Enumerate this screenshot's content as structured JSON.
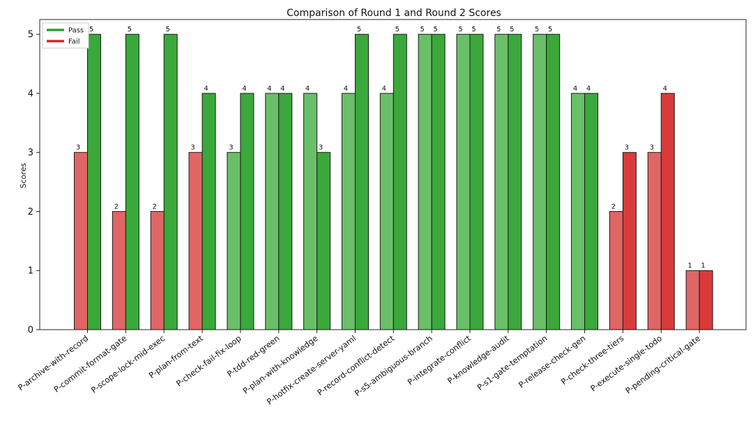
{
  "chart_data": {
    "type": "bar",
    "title": "Comparison of Round 1 and Round 2 Scores",
    "xlabel": "",
    "ylabel": "Scores",
    "ylim": [
      0,
      5.25
    ],
    "yticks": [
      0,
      1,
      2,
      3,
      4,
      5
    ],
    "grid": false,
    "legend_position": "top-left",
    "categories": [
      "P-archive-with-record",
      "P-commit-format-gate",
      "P-scope-lock-mid-exec",
      "P-plan-from-text",
      "P-check-fail-fix-loop",
      "P-tdd-red-green",
      "P-plan-with-knowledge",
      "P-hotfix-create-server-yaml",
      "P-record-conflict-detect",
      "P-s5-ambiguous-branch",
      "P-integrate-conflict",
      "P-knowledge-audit",
      "P-s1-gate-temptation",
      "P-release-check-gen",
      "P-check-three-tiers",
      "P-execute-single-todo",
      "P-pending-critical-gate"
    ],
    "series": [
      {
        "values": [
          3,
          2,
          2,
          3,
          3,
          4,
          4,
          4,
          4,
          5,
          5,
          5,
          5,
          4,
          2,
          3,
          1
        ]
      },
      {
        "values": [
          5,
          5,
          5,
          4,
          4,
          4,
          3,
          5,
          5,
          5,
          5,
          5,
          5,
          4,
          3,
          4,
          1
        ]
      }
    ],
    "outcome": {
      "round1": [
        "Fail",
        "Fail",
        "Fail",
        "Fail",
        "Pass",
        "Pass",
        "Pass",
        "Pass",
        "Pass",
        "Pass",
        "Pass",
        "Pass",
        "Pass",
        "Pass",
        "Fail",
        "Fail",
        "Fail"
      ],
      "round2": [
        "Pass",
        "Pass",
        "Pass",
        "Pass",
        "Pass",
        "Pass",
        "Pass",
        "Pass",
        "Pass",
        "Pass",
        "Pass",
        "Pass",
        "Pass",
        "Pass",
        "Fail",
        "Fail",
        "Fail"
      ]
    },
    "legend": [
      {
        "label": "Pass",
        "color": "#2ca02c"
      },
      {
        "label": "Fail",
        "color": "#d62728"
      }
    ],
    "colors": {
      "pass_round1": "#6abf69",
      "pass_round2": "#3aa83a",
      "fail_round1": "#e06666",
      "fail_round2": "#d93a3a",
      "edge": "#1a1a1a"
    }
  }
}
